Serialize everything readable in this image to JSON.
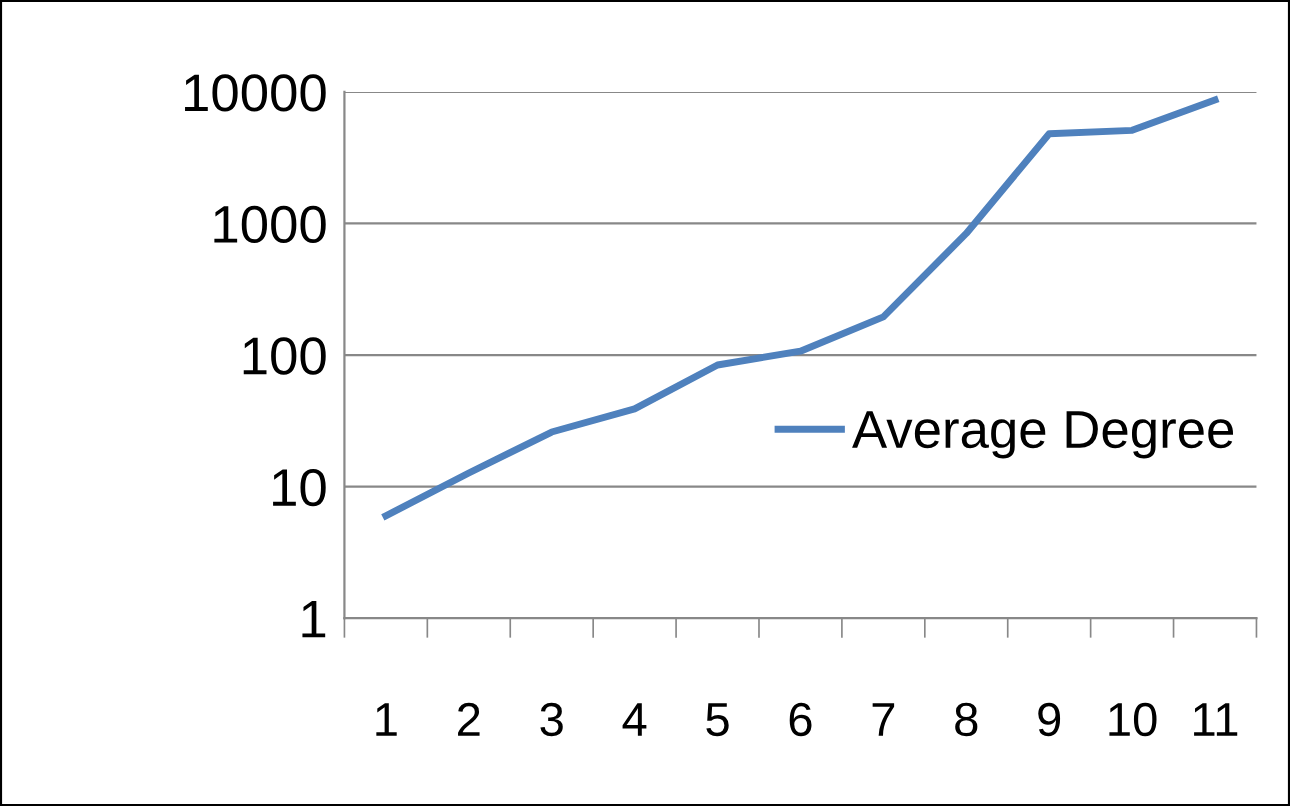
{
  "chart_data": {
    "type": "line",
    "categories": [
      "1",
      "2",
      "3",
      "4",
      "5",
      "6",
      "7",
      "8",
      "9",
      "10",
      "11"
    ],
    "series": [
      {
        "name": "Average Degree",
        "color": "#4f81bd",
        "values": [
          6,
          12.7,
          26,
          39,
          84,
          107,
          195,
          840,
          4800,
          5100,
          8700
        ]
      }
    ],
    "log": "y",
    "ylim": [
      1,
      10000
    ],
    "yticks": [
      1,
      10,
      100,
      1000,
      10000
    ],
    "grid": "y",
    "legend": "right",
    "marker": "none",
    "line_style": "solid"
  }
}
